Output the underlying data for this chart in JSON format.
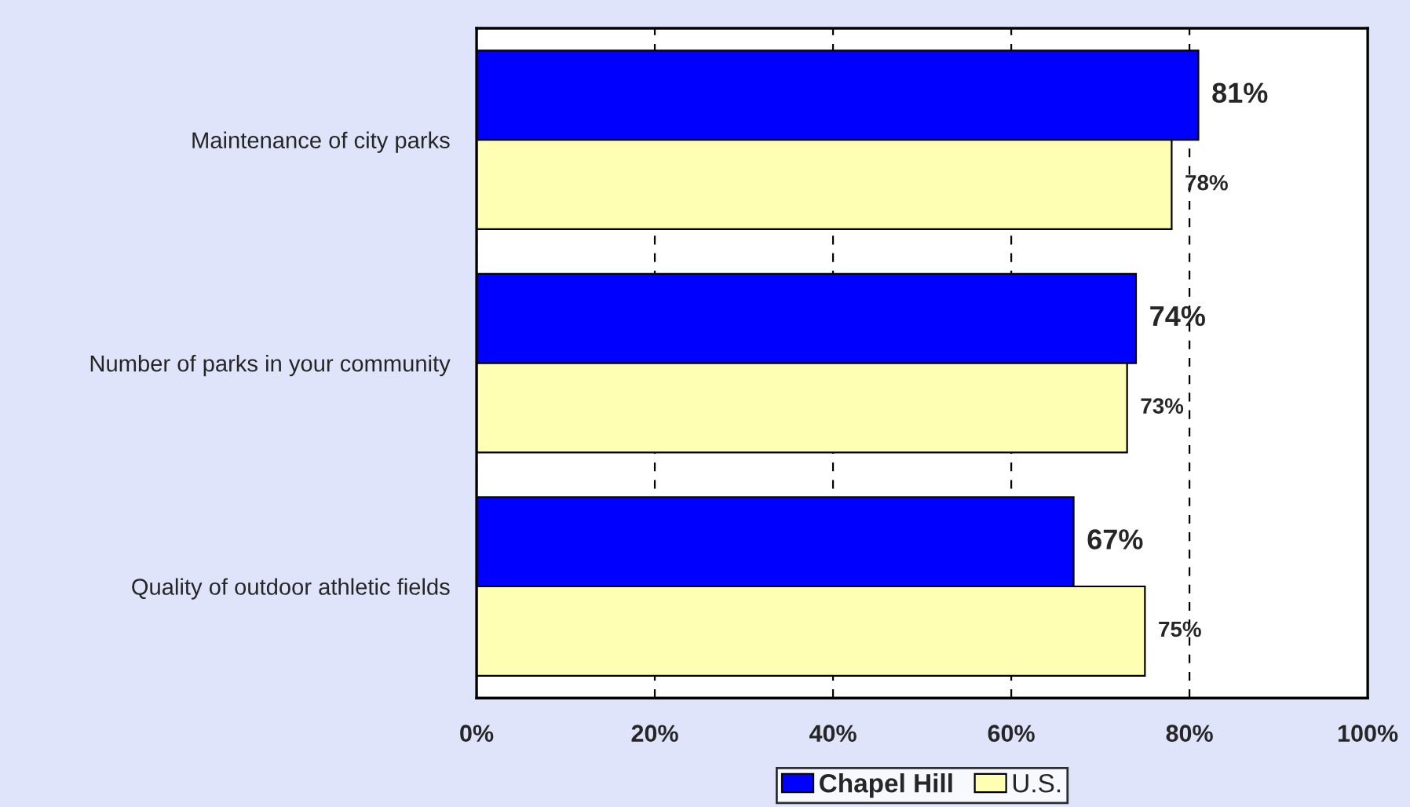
{
  "chart_data": {
    "type": "bar",
    "orientation": "horizontal",
    "categories": [
      "Maintenance of city parks",
      "Number of parks in your community",
      "Quality of outdoor athletic fields"
    ],
    "series": [
      {
        "name": "Chapel Hill",
        "color": "#0000ff",
        "values": [
          81,
          74,
          67
        ],
        "value_labels": [
          "81%",
          "74%",
          "67%"
        ]
      },
      {
        "name": "U.S.",
        "color": "#ffffb4",
        "values": [
          78,
          73,
          75
        ],
        "value_labels": [
          "78%",
          "73%",
          "75%"
        ]
      }
    ],
    "xlim": [
      0,
      100
    ],
    "xticks": [
      {
        "value": 0,
        "label": "0%"
      },
      {
        "value": 20,
        "label": "20%"
      },
      {
        "value": 40,
        "label": "40%"
      },
      {
        "value": 60,
        "label": "60%"
      },
      {
        "value": 80,
        "label": "80%"
      },
      {
        "value": 100,
        "label": "100%"
      }
    ],
    "grid": "x",
    "legend": "bottom"
  }
}
